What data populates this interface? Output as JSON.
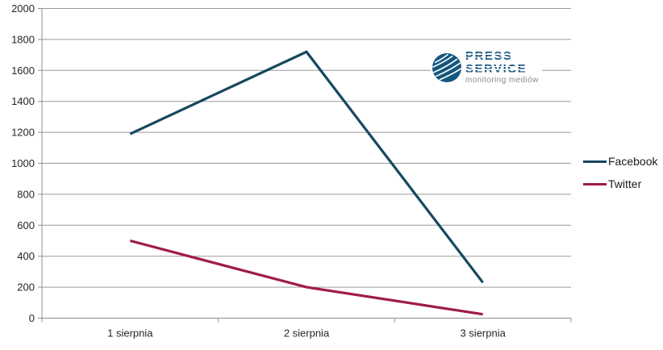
{
  "chart_data": {
    "type": "line",
    "title": "",
    "xlabel": "",
    "ylabel": "",
    "categories": [
      "1 sierpnia",
      "2 sierpnia",
      "3 sierpnia"
    ],
    "series": [
      {
        "name": "Facebook",
        "color": "#17485f",
        "values": [
          1190,
          1720,
          230
        ]
      },
      {
        "name": "Twitter",
        "color": "#a01b4d",
        "values": [
          500,
          200,
          25
        ]
      }
    ],
    "ylim": [
      0,
      2000
    ],
    "yticks": [
      0,
      200,
      400,
      600,
      800,
      1000,
      1200,
      1400,
      1600,
      1800,
      2000
    ],
    "grid": "horizontal",
    "legend_position": "right"
  },
  "logo": {
    "line1": "PRESS",
    "line2": "SERVICE",
    "tagline": "monitoring mediów"
  },
  "colors": {
    "gridline": "#9a9a9a",
    "axis": "#8f8f8f",
    "tick_text": "#262626",
    "legend_text": "#1a1a1a",
    "logo_blue": "#14567d",
    "logo_gray": "#8c8c8c",
    "background": "#ffffff"
  }
}
